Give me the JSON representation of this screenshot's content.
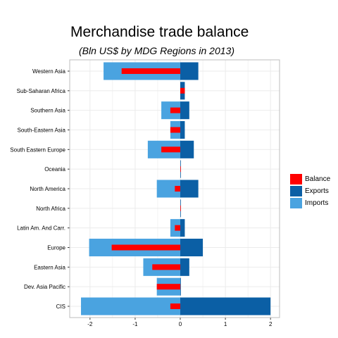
{
  "title": "Merchandise trade balance",
  "subtitle": "(Bln US$ by MDG Regions in 2013)",
  "colors": {
    "Balance": "#ff0000",
    "Exports": "#0b5fa5",
    "Imports": "#4aa3e0",
    "grid": "#ebebeb",
    "panel_border": "#bdbdbd"
  },
  "chart_data": {
    "type": "bar",
    "orientation": "horizontal",
    "categories": [
      "Western Asia",
      "Sub-Saharan Africa",
      "Southern Asia",
      "South-Eastern Asia",
      "South Eastern Europe",
      "Oceania",
      "North America",
      "North Africa",
      "Latin Am. And Carr.",
      "Europe",
      "Eastern Asia",
      "Dev. Asia Pacific",
      "CIS"
    ],
    "series": [
      {
        "name": "Imports",
        "values": [
          -1.7,
          0,
          -0.42,
          -0.22,
          -0.72,
          0,
          -0.52,
          0,
          -0.22,
          -2.02,
          -0.82,
          -0.52,
          -2.2
        ]
      },
      {
        "name": "Exports",
        "values": [
          0.4,
          0.1,
          0.2,
          0.1,
          0.3,
          0.01,
          0.4,
          0.01,
          0.1,
          0.5,
          0.2,
          0.0,
          2.0
        ]
      },
      {
        "name": "Balance",
        "values": [
          -1.3,
          0.1,
          -0.22,
          -0.22,
          -0.42,
          0.0,
          -0.12,
          0.0,
          -0.12,
          -1.52,
          -0.62,
          -0.52,
          -0.22
        ]
      }
    ],
    "xticks": [
      -2,
      -1,
      0,
      1,
      2
    ],
    "xlim": [
      -2.45,
      2.2
    ],
    "xlabel": "",
    "ylabel": "",
    "grid": true,
    "legend": {
      "position": "right",
      "entries": [
        "Balance",
        "Exports",
        "Imports"
      ]
    }
  }
}
